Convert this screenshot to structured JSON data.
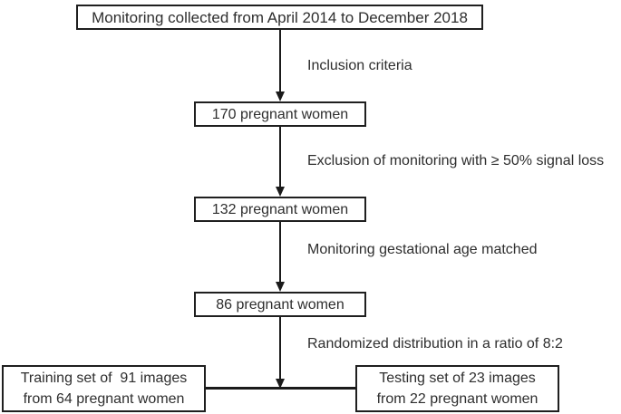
{
  "figure": {
    "background": "#ffffff",
    "line_color": "#1a1a1a",
    "border_color": "#1f1f1f",
    "text_color": "#2e2e2e"
  },
  "nodes": {
    "source": {
      "label": "Monitoring collected from April 2014 to December 2018"
    },
    "n170": {
      "label": "170 pregnant women"
    },
    "n132": {
      "label": "132 pregnant women"
    },
    "n86": {
      "label": "86 pregnant women"
    },
    "training": {
      "line1": "Training set of  91 images",
      "line2": "from 64 pregnant women"
    },
    "testing": {
      "line1": "Testing set of 23 images",
      "line2": "from 22 pregnant women"
    }
  },
  "edge_labels": {
    "inclusion": "Inclusion criteria",
    "exclusion": "Exclusion of monitoring with ≥ 50% signal loss",
    "matched": "Monitoring gestational age matched",
    "randomized": "Randomized distribution in a ratio of 8:2"
  }
}
